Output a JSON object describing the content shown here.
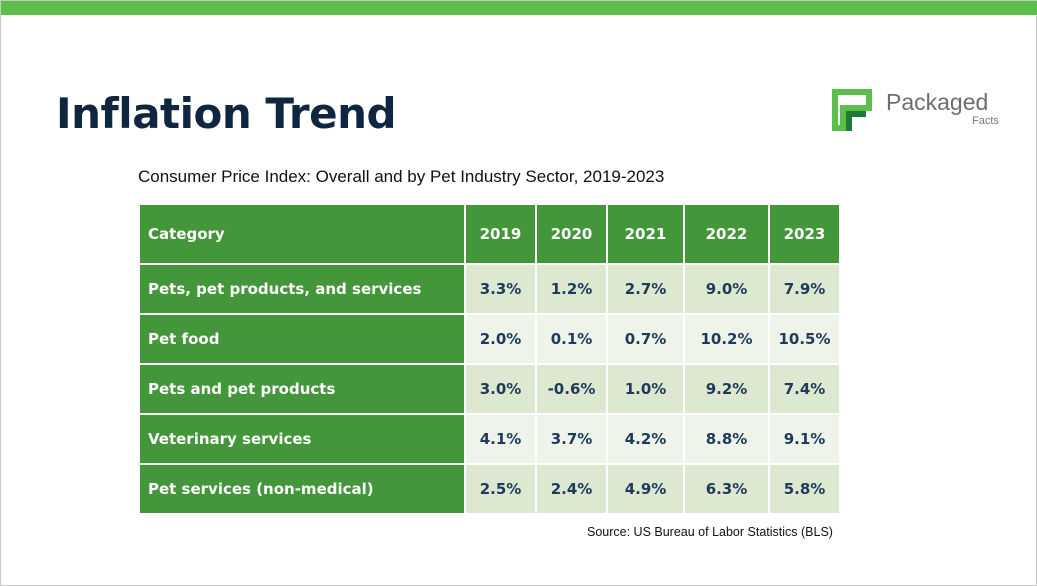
{
  "title": "Inflation Trend",
  "logo": {
    "word": "Packaged",
    "sub": "Facts"
  },
  "subtitle": "Consumer Price Index: Overall and by Pet Industry Sector, 2019-2023",
  "colors": {
    "accent": "#43973a",
    "top_bar": "#5cbf4c",
    "row_light": "#dce9d0",
    "row_lighter": "#eef4ea",
    "title": "#0f2640"
  },
  "table": {
    "headers": [
      "Category",
      "2019",
      "2020",
      "2021",
      "2022",
      "2023"
    ],
    "rows": [
      [
        "Pets, pet products, and services",
        "3.3%",
        "1.2%",
        "2.7%",
        "9.0%",
        "7.9%"
      ],
      [
        "Pet food",
        "2.0%",
        "0.1%",
        "0.7%",
        "10.2%",
        "10.5%"
      ],
      [
        "Pets and pet products",
        "3.0%",
        "-0.6%",
        "1.0%",
        "9.2%",
        "7.4%"
      ],
      [
        "Veterinary services",
        "4.1%",
        "3.7%",
        "4.2%",
        "8.8%",
        "9.1%"
      ],
      [
        "Pet services (non-medical)",
        "2.5%",
        "2.4%",
        "4.9%",
        "6.3%",
        "5.8%"
      ]
    ]
  },
  "source": "Source: US Bureau of Labor Statistics (BLS)"
}
